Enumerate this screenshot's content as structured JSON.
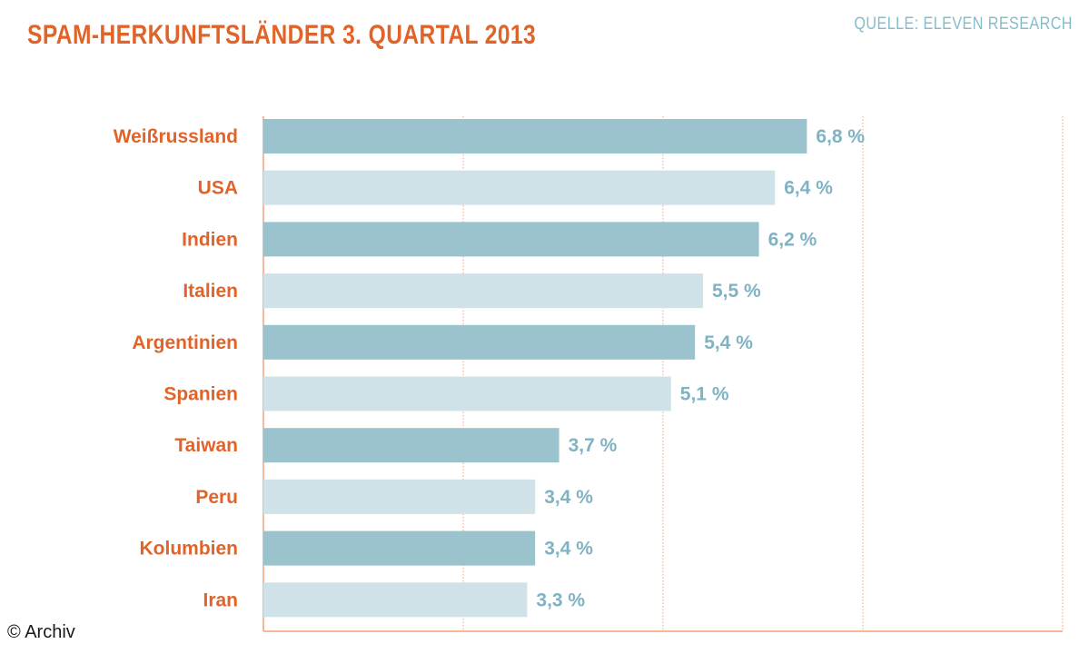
{
  "chart_data": {
    "type": "bar",
    "orientation": "horizontal",
    "title": "SPAM-HERKUNFTSLÄNDER 3. QUARTAL 2013",
    "source": "QUELLE: ELEVEN RESEARCH",
    "categories": [
      "Weißrussland",
      "USA",
      "Indien",
      "Italien",
      "Argentinien",
      "Spanien",
      "Taiwan",
      "Peru",
      "Kolumbien",
      "Iran"
    ],
    "values": [
      6.8,
      6.4,
      6.2,
      5.5,
      5.4,
      5.1,
      3.7,
      3.4,
      3.4,
      3.3
    ],
    "value_labels": [
      "6,8 %",
      "6,4 %",
      "6,2 %",
      "5,5 %",
      "5,4 %",
      "5,1 %",
      "3,7 %",
      "3,4 %",
      "3,4 %",
      "3,3 %"
    ],
    "xlim": [
      0,
      10
    ],
    "grid": true,
    "colors": {
      "bar_dark": "#9ac3ce",
      "bar_light": "#cfe2e7",
      "label_orange": "#e0642a",
      "value_blue": "#7fb3c3",
      "grid_orange": "#f0a27a"
    }
  },
  "footer": {
    "copyright": "© Archiv"
  }
}
